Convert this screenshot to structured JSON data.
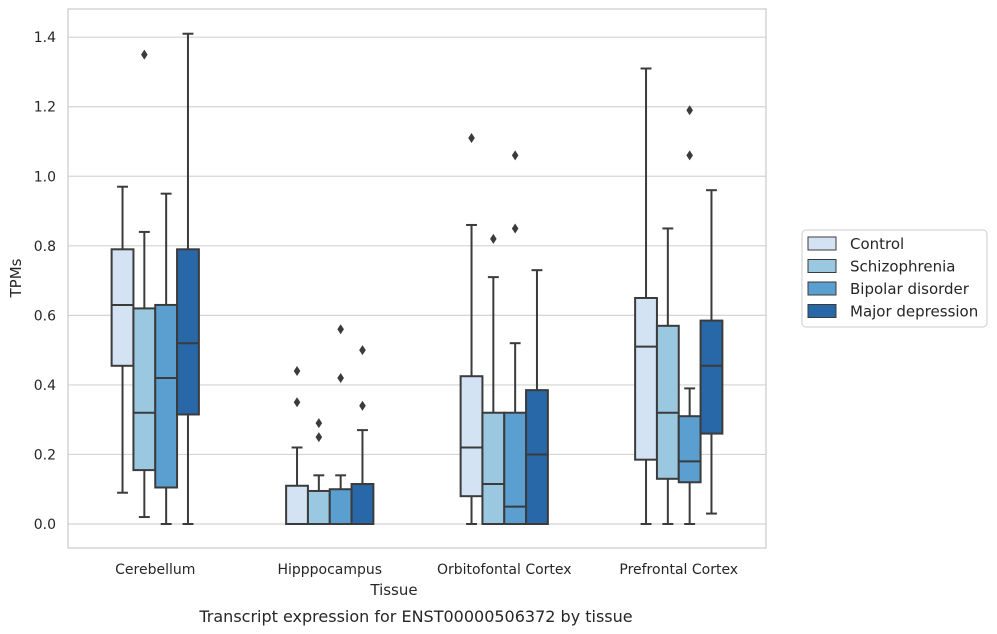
{
  "chart_data": {
    "type": "box",
    "caption": "Transcript expression for ENST00000506372 by tissue",
    "xlabel": "Tissue",
    "ylabel": "TPMs",
    "ylim": [
      -0.07,
      1.48
    ],
    "yticks": [
      0.0,
      0.2,
      0.4,
      0.6,
      0.8,
      1.0,
      1.2,
      1.4
    ],
    "ytick_labels": [
      "0.0",
      "0.2",
      "0.4",
      "0.6",
      "0.8",
      "1.0",
      "1.2",
      "1.4"
    ],
    "grid": "horizontal",
    "legend_position": "right",
    "categories": [
      "Cerebellum",
      "Hipppocampus",
      "Orbitofontal Cortex",
      "Prefrontal Cortex"
    ],
    "series": [
      {
        "name": "Control",
        "color": "#d3e3f3",
        "boxes": [
          {
            "whislo": 0.09,
            "q1": 0.455,
            "med": 0.63,
            "q3": 0.79,
            "whishi": 0.97,
            "fliers": []
          },
          {
            "whislo": 0.0,
            "q1": 0.0,
            "med": 0.0,
            "q3": 0.11,
            "whishi": 0.22,
            "fliers": [
              0.35,
              0.44
            ]
          },
          {
            "whislo": 0.0,
            "q1": 0.08,
            "med": 0.22,
            "q3": 0.425,
            "whishi": 0.86,
            "fliers": [
              1.11
            ]
          },
          {
            "whislo": 0.0,
            "q1": 0.185,
            "med": 0.51,
            "q3": 0.65,
            "whishi": 1.31,
            "fliers": []
          }
        ]
      },
      {
        "name": "Schizophrenia",
        "color": "#9ac8e0",
        "boxes": [
          {
            "whislo": 0.02,
            "q1": 0.155,
            "med": 0.32,
            "q3": 0.62,
            "whishi": 0.84,
            "fliers": [
              1.35
            ]
          },
          {
            "whislo": 0.0,
            "q1": 0.0,
            "med": 0.0,
            "q3": 0.095,
            "whishi": 0.14,
            "fliers": [
              0.25,
              0.29
            ]
          },
          {
            "whislo": 0.0,
            "q1": 0.0,
            "med": 0.115,
            "q3": 0.32,
            "whishi": 0.71,
            "fliers": [
              0.82
            ]
          },
          {
            "whislo": 0.0,
            "q1": 0.13,
            "med": 0.32,
            "q3": 0.57,
            "whishi": 0.85,
            "fliers": []
          }
        ]
      },
      {
        "name": "Bipolar disorder",
        "color": "#5a9fcf",
        "boxes": [
          {
            "whislo": 0.0,
            "q1": 0.105,
            "med": 0.42,
            "q3": 0.63,
            "whishi": 0.95,
            "fliers": []
          },
          {
            "whislo": 0.0,
            "q1": 0.0,
            "med": 0.0,
            "q3": 0.1,
            "whishi": 0.14,
            "fliers": [
              0.42,
              0.56
            ]
          },
          {
            "whislo": 0.0,
            "q1": 0.0,
            "med": 0.05,
            "q3": 0.32,
            "whishi": 0.52,
            "fliers": [
              0.85,
              1.06
            ]
          },
          {
            "whislo": 0.0,
            "q1": 0.12,
            "med": 0.18,
            "q3": 0.31,
            "whishi": 0.39,
            "fliers": [
              1.06,
              1.19
            ]
          }
        ]
      },
      {
        "name": "Major depression",
        "color": "#2867a8",
        "boxes": [
          {
            "whislo": 0.0,
            "q1": 0.315,
            "med": 0.52,
            "q3": 0.79,
            "whishi": 1.41,
            "fliers": []
          },
          {
            "whislo": 0.0,
            "q1": 0.0,
            "med": 0.0,
            "q3": 0.115,
            "whishi": 0.27,
            "fliers": [
              0.34,
              0.5
            ]
          },
          {
            "whislo": 0.0,
            "q1": 0.0,
            "med": 0.2,
            "q3": 0.385,
            "whishi": 0.73,
            "fliers": []
          },
          {
            "whislo": 0.03,
            "q1": 0.26,
            "med": 0.455,
            "q3": 0.585,
            "whishi": 0.96,
            "fliers": []
          }
        ]
      }
    ]
  }
}
